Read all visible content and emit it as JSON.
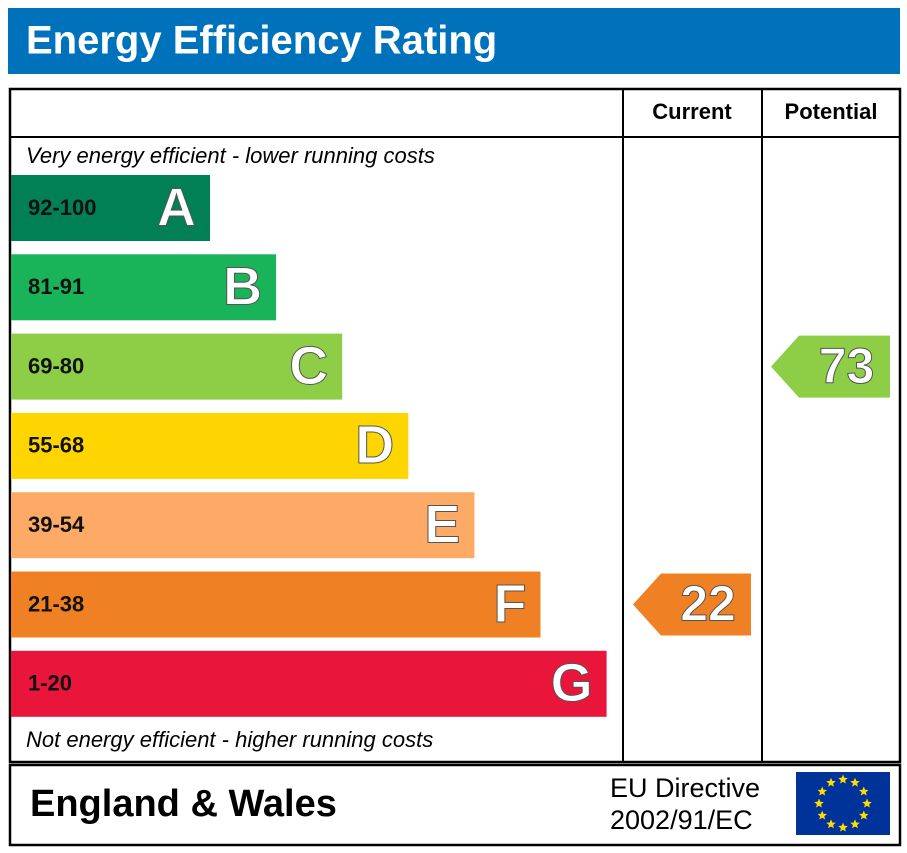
{
  "chart_data": {
    "type": "epc",
    "title": "Energy Efficiency Rating",
    "columns": [
      "Current",
      "Potential"
    ],
    "top_note": "Very energy efficient - lower running costs",
    "bottom_note": "Not energy efficient - higher running costs",
    "bands": [
      {
        "range": "92-100",
        "letter": "A",
        "color": "#008054"
      },
      {
        "range": "81-91",
        "letter": "B",
        "color": "#19b459"
      },
      {
        "range": "69-80",
        "letter": "C",
        "color": "#8dce46"
      },
      {
        "range": "55-68",
        "letter": "D",
        "color": "#ffd500"
      },
      {
        "range": "39-54",
        "letter": "E",
        "color": "#fcaa65"
      },
      {
        "range": "21-38",
        "letter": "F",
        "color": "#ef8023"
      },
      {
        "range": "1-20",
        "letter": "G",
        "color": "#e9153b"
      }
    ],
    "current": {
      "value": 22,
      "color": "#ef8023"
    },
    "potential": {
      "value": 73,
      "color": "#8dce46"
    },
    "region": "England & Wales",
    "directive": [
      "EU Directive",
      "2002/91/EC"
    ]
  }
}
